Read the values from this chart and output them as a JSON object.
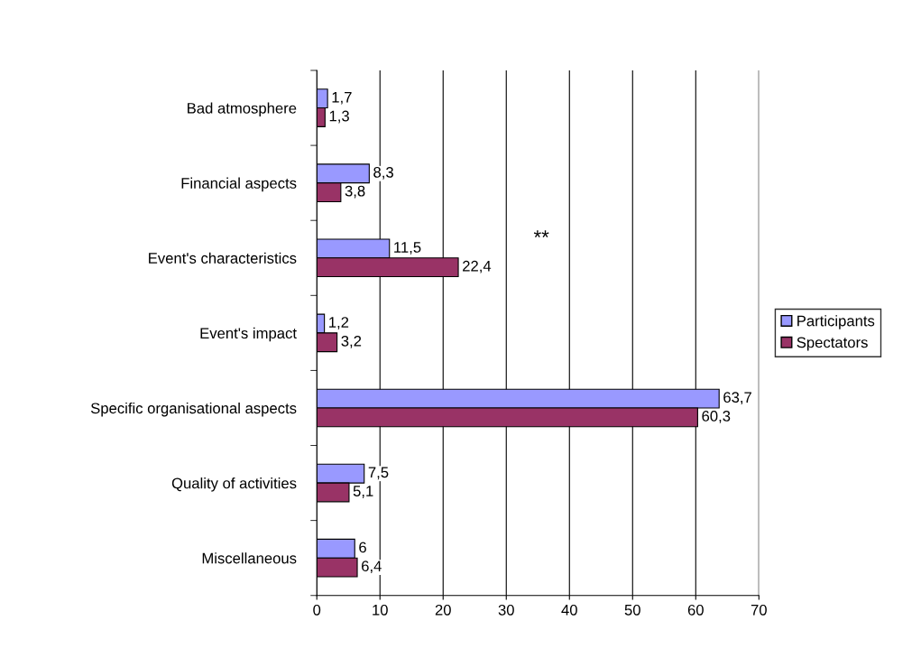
{
  "chart_data": {
    "type": "bar",
    "orientation": "horizontal",
    "categories": [
      "Bad atmosphere",
      "Financial aspects",
      "Event's characteristics",
      "Event's impact",
      "Specific organisational aspects",
      "Quality of activities",
      "Miscellaneous"
    ],
    "series": [
      {
        "name": "Participants",
        "color": "#9999ff",
        "values": [
          1.7,
          8.3,
          11.5,
          1.2,
          63.7,
          7.5,
          6
        ],
        "value_labels": [
          "1,7",
          "8,3",
          "11,5",
          "1,2",
          "63,7",
          "7,5",
          "6"
        ]
      },
      {
        "name": "Spectators",
        "color": "#993366",
        "values": [
          1.3,
          3.8,
          22.4,
          3.2,
          60.3,
          5.1,
          6.4
        ],
        "value_labels": [
          "1,3",
          "3,8",
          "22,4",
          "3,2",
          "60,3",
          "5,1",
          "6,4"
        ]
      }
    ],
    "xlim": [
      0,
      70
    ],
    "xticks": [
      0,
      10,
      20,
      30,
      40,
      50,
      60,
      70
    ],
    "grid": "x",
    "legend": "right",
    "annotations": [
      "**"
    ]
  }
}
